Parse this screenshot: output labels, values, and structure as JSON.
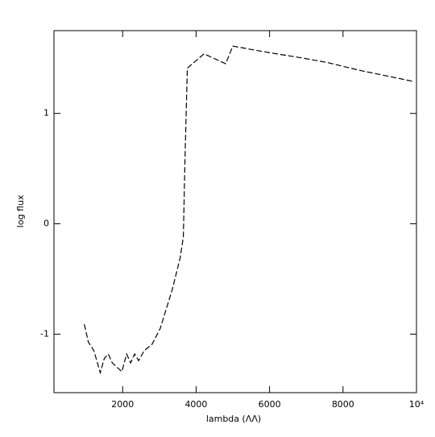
{
  "chart_data": {
    "type": "line",
    "xlabel": "lambda (ΛΛ)",
    "ylabel": "log flux",
    "x": [
      956,
      1065,
      1217,
      1391,
      1500,
      1609,
      1717,
      1978,
      2108,
      2217,
      2326,
      2435,
      2587,
      2804,
      3021,
      3347,
      3565,
      3652,
      3696,
      3761,
      4217,
      4804,
      5000,
      6000,
      6935,
      7587,
      8457,
      9913
    ],
    "series": [
      {
        "color": "#000000",
        "values": [
          -0.91,
          -1.07,
          -1.15,
          -1.35,
          -1.22,
          -1.18,
          -1.26,
          -1.34,
          -1.18,
          -1.26,
          -1.18,
          -1.24,
          -1.15,
          -1.09,
          -0.95,
          -0.6,
          -0.31,
          -0.12,
          0.57,
          1.41,
          1.54,
          1.45,
          1.61,
          1.55,
          1.5,
          1.46,
          1.39,
          1.29
        ]
      }
    ],
    "xlim": [
      130,
      10000
    ],
    "ylim": [
      -1.53,
      1.75
    ],
    "xticks": [
      2000,
      4000,
      6000,
      8000,
      {
        "value": 10000,
        "label": "10⁴"
      }
    ],
    "yticks": [
      -1,
      0,
      1
    ]
  }
}
